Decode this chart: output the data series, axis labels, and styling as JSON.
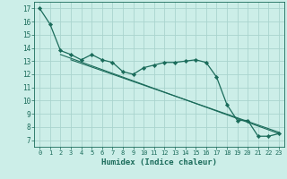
{
  "xlabel": "Humidex (Indice chaleur)",
  "bg_color": "#cceee8",
  "grid_color": "#aad4ce",
  "line_color": "#1a6b5a",
  "xlim": [
    -0.5,
    23.5
  ],
  "ylim": [
    6.5,
    17.5
  ],
  "xticks": [
    0,
    1,
    2,
    3,
    4,
    5,
    6,
    7,
    8,
    9,
    10,
    11,
    12,
    13,
    14,
    15,
    16,
    17,
    18,
    19,
    20,
    21,
    22,
    23
  ],
  "yticks": [
    7,
    8,
    9,
    10,
    11,
    12,
    13,
    14,
    15,
    16,
    17
  ],
  "series1": {
    "x": [
      0,
      1,
      2,
      3,
      4,
      5,
      6,
      7,
      8,
      9,
      10,
      11,
      12,
      13,
      14,
      15,
      16,
      17,
      18,
      19,
      20,
      21,
      22,
      23
    ],
    "y": [
      17.0,
      15.8,
      13.8,
      13.5,
      13.1,
      13.5,
      13.1,
      12.9,
      12.2,
      12.0,
      12.5,
      12.7,
      12.9,
      12.9,
      13.0,
      13.1,
      12.9,
      11.8,
      9.7,
      8.5,
      8.5,
      7.3,
      7.3,
      7.5
    ]
  },
  "series2": {
    "x": [
      2,
      23
    ],
    "y": [
      13.5,
      7.5
    ]
  },
  "series3": {
    "x": [
      3,
      23
    ],
    "y": [
      13.1,
      7.6
    ]
  }
}
